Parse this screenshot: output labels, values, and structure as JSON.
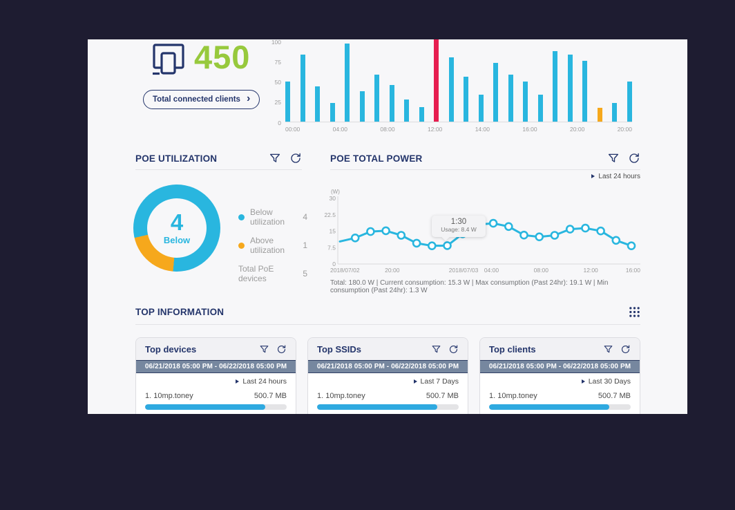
{
  "colors": {
    "navy": "#24356b",
    "cyan": "#29b6df",
    "orange": "#f6a81c",
    "red": "#e61e50",
    "green": "#97c93d",
    "banner_slate": "#76879f"
  },
  "clients_summary": {
    "count": "450",
    "button_label": "Total connected clients",
    "chevron": "›"
  },
  "chart_data": [
    {
      "type": "bar",
      "title": "Connected clients by hour",
      "ylim": [
        0,
        100
      ],
      "yticks": [
        100,
        75,
        50,
        25,
        0
      ],
      "x_tick_labels": [
        "00:00",
        "04:00",
        "08:00",
        "12:00",
        "14:00",
        "16:00",
        "20:00",
        "20:00"
      ],
      "values": [
        50,
        84,
        44,
        23,
        97,
        38,
        59,
        46,
        28,
        18,
        100,
        80,
        56,
        34,
        73,
        59,
        50,
        34,
        88,
        84,
        76,
        17,
        23,
        50
      ],
      "bar_color": "#29b6df",
      "highlights": {
        "10": {
          "color": "#e61e50",
          "full_bleed": true
        },
        "21": {
          "color": "#f6a81c"
        }
      },
      "legend_position": "none",
      "grid": false
    },
    {
      "type": "pie",
      "title": "POE UTILIZATION",
      "slices": [
        {
          "label": "Below utilization",
          "value": 4,
          "color": "#29b6df"
        },
        {
          "label": "Above utilization",
          "value": 1,
          "color": "#f6a81c"
        }
      ],
      "total_row": {
        "label": "Total PoE devices",
        "value": 5
      },
      "center_value": "4",
      "center_label": "Below",
      "donut_start_deg": 185
    },
    {
      "type": "line",
      "title": "POE TOTAL POWER",
      "unit_label": "(W)",
      "ylim": [
        0,
        30
      ],
      "yticks": [
        30,
        22.5,
        15,
        7.5,
        0
      ],
      "x_tick_labels": [
        "2018/07/02",
        "20:00",
        "2018/07/03",
        "04:00",
        "08:00",
        "12:00",
        "16:00"
      ],
      "values": [
        10.3,
        11.9,
        14.8,
        15.2,
        13.1,
        9.5,
        8.3,
        8.4,
        13.8,
        18.0,
        18.6,
        17.1,
        13.2,
        12.4,
        13.1,
        15.9,
        16.4,
        15.1,
        10.8,
        8.3
      ],
      "line_color": "#29b6df",
      "tooltip": {
        "time": "1:30",
        "text": "Usage: 8.4 W",
        "point_index": 7
      },
      "grid": false
    }
  ],
  "poe_utilization": {
    "title": "POE UTILIZATION"
  },
  "poe_total_power": {
    "title": "POE TOTAL POWER",
    "range_label": "Last 24 hours",
    "stats": [
      "Total: 180.0 W",
      "Current consumption: 15.3 W",
      "Max consumption (Past 24hr): 19.1 W",
      "Min consumption (Past 24hr): 1.3 W"
    ],
    "stats_separator": "   |   "
  },
  "top_information": {
    "title": "TOP INFORMATION",
    "cards": [
      {
        "title": "Top devices",
        "date_range": "06/21/2018 05:00 PM - 06/22/2018 05:00 PM",
        "range_label": "Last 24 hours",
        "items": [
          {
            "name": "1. 10mp.toney",
            "value": "500.7 MB",
            "percent": 85
          }
        ]
      },
      {
        "title": "Top SSIDs",
        "date_range": "06/21/2018 05:00 PM - 06/22/2018 05:00 PM",
        "range_label": "Last 7 Days",
        "items": [
          {
            "name": "1. 10mp.toney",
            "value": "500.7 MB",
            "percent": 85
          }
        ]
      },
      {
        "title": "Top clients",
        "date_range": "06/21/2018 05:00 PM - 06/22/2018 05:00 PM",
        "range_label": "Last 30 Days",
        "items": [
          {
            "name": "1. 10mp.toney",
            "value": "500.7 MB",
            "percent": 85
          }
        ]
      }
    ]
  }
}
